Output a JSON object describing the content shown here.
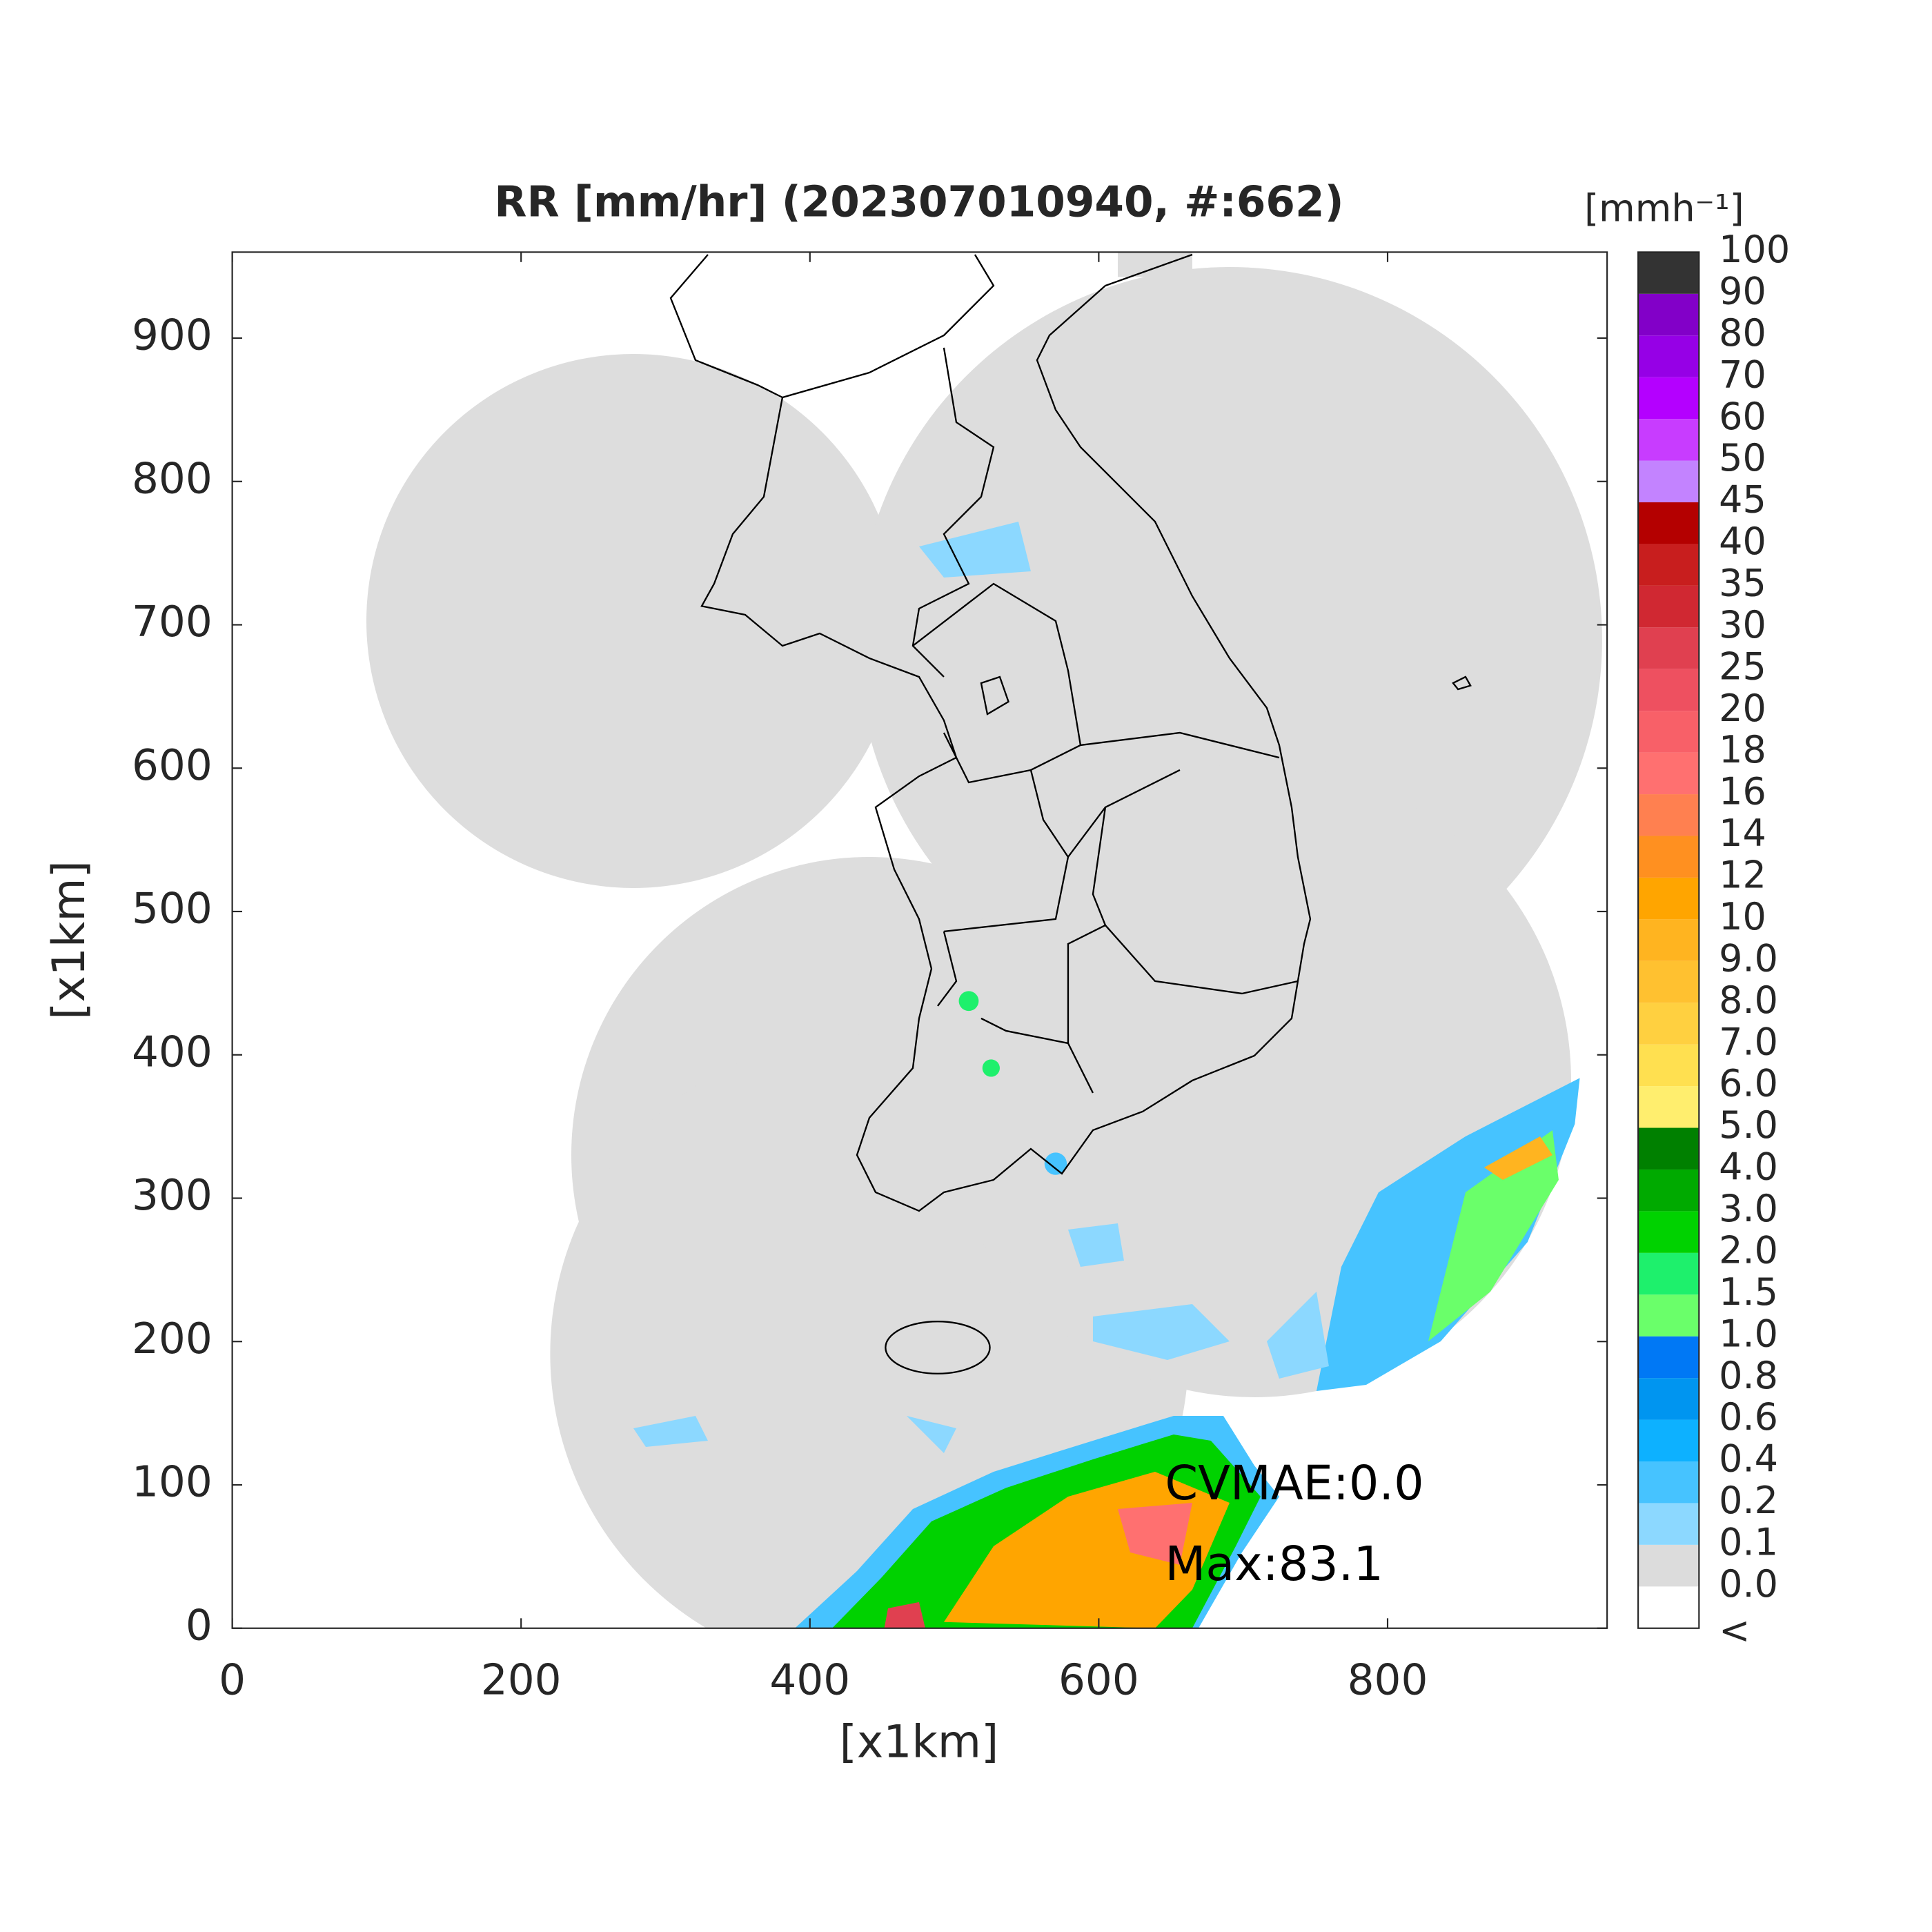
{
  "chart_data": {
    "type": "map",
    "title": "RR [mm/hr] (202307010940, #:662)",
    "xlabel": "[x1km]",
    "ylabel": "[x1km]",
    "xlim": [
      0,
      952
    ],
    "ylim": [
      0,
      960
    ],
    "xticks": [
      0,
      200,
      400,
      600,
      800
    ],
    "yticks": [
      0,
      100,
      200,
      300,
      400,
      500,
      600,
      700,
      800,
      900
    ],
    "annotations": [
      "CVMAE:0.0",
      "Max:83.1"
    ],
    "colorbar": {
      "title": "[mmh⁻¹]",
      "under_label": "<",
      "ticks": [
        {
          "value": 0,
          "label": "0.0"
        },
        0.1,
        0.2,
        0.4,
        0.6,
        0.8,
        {
          "value": 1,
          "label": "1.0"
        },
        1.5,
        {
          "value": 2,
          "label": "2.0"
        },
        {
          "value": 3,
          "label": "3.0"
        },
        {
          "value": 4,
          "label": "4.0"
        },
        {
          "value": 5,
          "label": "5.0"
        },
        {
          "value": 6,
          "label": "6.0"
        },
        {
          "value": 7,
          "label": "7.0"
        },
        {
          "value": 8,
          "label": "8.0"
        },
        {
          "value": 9,
          "label": "9.0"
        },
        10,
        12,
        14,
        16,
        18,
        20,
        25,
        30,
        35,
        40,
        45,
        50,
        60,
        70,
        80,
        90,
        100
      ],
      "colors": [
        "#ffffff",
        "#dcdcdc",
        "#8cd8ff",
        "#46c3ff",
        "#0db1ff",
        "#0095f0",
        "#0078f5",
        "#6aff6a",
        "#1ef06c",
        "#00d200",
        "#00aa00",
        "#008000",
        "#ffee6e",
        "#ffe050",
        "#ffd040",
        "#ffc130",
        "#ffb420",
        "#ffa500",
        "#ff9020",
        "#ff8050",
        "#ff7070",
        "#f86068",
        "#ee5060",
        "#e04050",
        "#d02832",
        "#c81e1e",
        "#b40000",
        "#c383ff",
        "#c83cff",
        "#b400ff",
        "#9600e6",
        "#8200c8",
        "#333333"
      ]
    }
  }
}
